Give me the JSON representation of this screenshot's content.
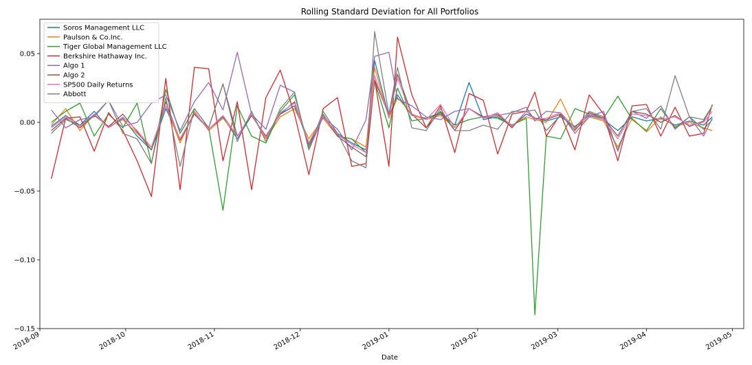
{
  "chart_data": {
    "type": "line",
    "title": "Rolling Standard Deviation for All Portfolios",
    "xlabel": "Date",
    "ylabel": "",
    "ylim": [
      -0.15,
      0.075
    ],
    "xlim": [
      "2018-09-01",
      "2019-05-05"
    ],
    "x_ticks": [
      "2018-09",
      "2018-10",
      "2018-11",
      "2018-12",
      "2019-01",
      "2019-02",
      "2019-03",
      "2019-04",
      "2019-05"
    ],
    "y_ticks": [
      0.05,
      0.0,
      -0.05,
      -0.1,
      -0.15
    ],
    "y_tick_labels": [
      "0.05",
      "0.00",
      "−0.05",
      "−0.10",
      "−0.15"
    ],
    "grid": false,
    "legend_position": "top-left",
    "x": [
      "2018-09-05",
      "2018-09-10",
      "2018-09-15",
      "2018-09-20",
      "2018-09-25",
      "2018-09-30",
      "2018-10-05",
      "2018-10-10",
      "2018-10-15",
      "2018-10-20",
      "2018-10-25",
      "2018-10-30",
      "2018-11-04",
      "2018-11-09",
      "2018-11-14",
      "2018-11-19",
      "2018-11-24",
      "2018-11-29",
      "2018-12-04",
      "2018-12-09",
      "2018-12-14",
      "2018-12-19",
      "2018-12-24",
      "2018-12-27",
      "2019-01-01",
      "2019-01-04",
      "2019-01-09",
      "2019-01-14",
      "2019-01-19",
      "2019-01-24",
      "2019-01-29",
      "2019-02-03",
      "2019-02-08",
      "2019-02-13",
      "2019-02-18",
      "2019-02-21",
      "2019-02-25",
      "2019-03-02",
      "2019-03-07",
      "2019-03-12",
      "2019-03-17",
      "2019-03-22",
      "2019-03-27",
      "2019-04-01",
      "2019-04-06",
      "2019-04-11",
      "2019-04-16",
      "2019-04-21",
      "2019-04-24"
    ],
    "series": [
      {
        "name": "Soros Management LLC",
        "color": "#1f77b4",
        "values": [
          -0.003,
          0.005,
          -0.002,
          0.008,
          -0.004,
          0.003,
          -0.01,
          -0.02,
          0.01,
          -0.012,
          0.006,
          -0.005,
          0.004,
          -0.012,
          0.005,
          -0.01,
          0.006,
          0.012,
          -0.015,
          0.004,
          -0.008,
          -0.015,
          -0.02,
          0.045,
          0.004,
          0.02,
          0.005,
          0.003,
          0.006,
          -0.002,
          0.029,
          0.002,
          0.004,
          -0.003,
          0.006,
          0.003,
          0.001,
          0.004,
          -0.003,
          0.005,
          0.002,
          -0.006,
          0.004,
          0.001,
          0.003,
          -0.002,
          0.001,
          -0.002,
          0.004
        ]
      },
      {
        "name": "Paulson & Co.Inc.",
        "color": "#ff7f0e",
        "values": [
          -0.002,
          0.01,
          -0.006,
          0.006,
          -0.003,
          0.002,
          -0.008,
          -0.018,
          0.012,
          -0.015,
          0.008,
          -0.006,
          0.003,
          -0.01,
          0.006,
          -0.012,
          0.004,
          0.01,
          -0.012,
          0.003,
          -0.01,
          -0.012,
          -0.018,
          0.04,
          0.003,
          0.018,
          0.006,
          0.002,
          0.005,
          -0.004,
          0.01,
          0.003,
          0.005,
          -0.002,
          0.004,
          0.002,
          0.0,
          0.017,
          -0.005,
          0.004,
          0.001,
          -0.018,
          0.003,
          -0.007,
          0.004,
          -0.003,
          0.0,
          -0.004,
          -0.006
        ]
      },
      {
        "name": "Tiger Global Management LLC",
        "color": "#2ca02c",
        "values": [
          0.0,
          0.008,
          0.014,
          -0.01,
          0.006,
          -0.004,
          0.014,
          -0.03,
          0.024,
          -0.008,
          0.01,
          -0.004,
          -0.064,
          0.012,
          -0.01,
          -0.015,
          0.008,
          0.02,
          -0.018,
          0.006,
          -0.01,
          -0.012,
          -0.022,
          0.03,
          -0.004,
          0.025,
          0.001,
          0.003,
          0.007,
          -0.002,
          0.002,
          0.004,
          0.003,
          -0.002,
          0.003,
          -0.14,
          -0.01,
          -0.012,
          0.01,
          0.006,
          0.003,
          0.019,
          0.002,
          -0.006,
          0.01,
          -0.004,
          0.004,
          -0.005,
          0.002
        ]
      },
      {
        "name": "Berkshire Hathaway Inc.",
        "color": "#d62728",
        "values": [
          -0.041,
          0.003,
          0.004,
          -0.021,
          0.007,
          -0.006,
          -0.028,
          -0.054,
          0.032,
          -0.049,
          0.04,
          0.039,
          -0.028,
          0.015,
          -0.049,
          0.018,
          0.038,
          0.006,
          -0.038,
          0.01,
          0.018,
          -0.032,
          -0.03,
          0.031,
          -0.032,
          0.062,
          0.02,
          -0.004,
          0.012,
          -0.022,
          0.021,
          0.016,
          -0.023,
          0.006,
          0.008,
          0.022,
          -0.01,
          0.006,
          -0.02,
          0.02,
          0.006,
          -0.028,
          0.012,
          0.013,
          -0.01,
          0.011,
          -0.01,
          -0.008,
          0.013
        ]
      },
      {
        "name": "Algo 1",
        "color": "#9467bd",
        "values": [
          0.009,
          -0.004,
          0.002,
          0.004,
          0.016,
          -0.003,
          0.0,
          0.014,
          0.02,
          -0.006,
          0.015,
          0.029,
          0.009,
          0.051,
          0.006,
          -0.005,
          0.027,
          0.022,
          -0.02,
          0.004,
          -0.005,
          -0.02,
          0.002,
          0.048,
          0.051,
          0.017,
          0.012,
          0.004,
          0.002,
          0.008,
          0.01,
          0.003,
          0.005,
          0.007,
          0.011,
          0.001,
          0.008,
          0.007,
          -0.008,
          0.004,
          0.008,
          -0.021,
          0.008,
          0.003,
          0.012,
          -0.005,
          0.004,
          -0.01,
          0.003
        ]
      },
      {
        "name": "Algo 2",
        "color": "#8c564b",
        "values": [
          -0.006,
          0.003,
          -0.004,
          0.005,
          -0.003,
          0.006,
          -0.007,
          -0.02,
          0.015,
          -0.013,
          0.006,
          -0.004,
          0.028,
          -0.01,
          0.005,
          -0.01,
          0.006,
          0.015,
          -0.016,
          0.005,
          -0.01,
          -0.018,
          -0.025,
          0.031,
          0.005,
          0.035,
          0.006,
          -0.004,
          0.008,
          -0.006,
          0.01,
          0.004,
          0.006,
          -0.004,
          0.008,
          0.003,
          0.002,
          0.006,
          -0.006,
          0.007,
          0.003,
          -0.01,
          0.008,
          0.006,
          0.0,
          0.005,
          -0.003,
          0.001,
          0.012
        ]
      },
      {
        "name": "SP500 Daily Returns",
        "color": "#e377c2",
        "values": [
          -0.004,
          0.004,
          -0.003,
          0.006,
          -0.004,
          0.004,
          -0.006,
          -0.018,
          0.012,
          -0.012,
          0.007,
          -0.005,
          0.005,
          -0.01,
          0.006,
          -0.011,
          0.007,
          0.014,
          -0.015,
          0.005,
          -0.009,
          -0.016,
          -0.022,
          0.034,
          0.004,
          0.032,
          0.005,
          0.002,
          0.013,
          -0.004,
          0.01,
          0.003,
          0.007,
          -0.003,
          0.008,
          0.002,
          0.003,
          0.007,
          -0.004,
          0.006,
          0.002,
          -0.012,
          0.006,
          0.005,
          0.002,
          0.004,
          -0.002,
          0.0,
          0.008
        ]
      },
      {
        "name": "Abbott",
        "color": "#7f7f7f",
        "values": [
          -0.008,
          0.002,
          -0.002,
          0.005,
          0.016,
          -0.008,
          -0.012,
          -0.03,
          0.018,
          -0.032,
          0.01,
          -0.004,
          0.028,
          -0.014,
          0.008,
          -0.014,
          0.01,
          0.022,
          -0.02,
          0.008,
          -0.008,
          -0.028,
          -0.033,
          0.066,
          0.006,
          0.04,
          -0.004,
          -0.006,
          0.01,
          -0.006,
          -0.006,
          -0.002,
          -0.005,
          0.008,
          0.008,
          0.009,
          -0.006,
          0.005,
          -0.004,
          0.008,
          0.004,
          -0.02,
          0.008,
          0.01,
          -0.005,
          0.034,
          0.004,
          0.002,
          0.012
        ]
      }
    ]
  }
}
